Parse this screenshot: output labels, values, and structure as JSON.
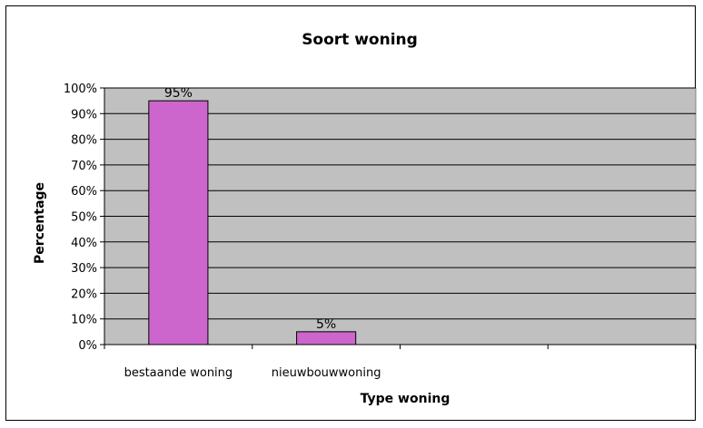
{
  "chart_data": {
    "type": "bar",
    "title": "Soort woning",
    "xlabel": "Type woning",
    "ylabel": "Percentage",
    "categories": [
      "bestaande woning",
      "nieuwbouwwoning",
      "",
      ""
    ],
    "values": [
      95,
      5,
      null,
      null
    ],
    "data_labels": [
      "95%",
      "5%",
      "",
      ""
    ],
    "ylim": [
      0,
      100
    ],
    "y_ticks": [
      "0%",
      "10%",
      "20%",
      "30%",
      "40%",
      "50%",
      "60%",
      "70%",
      "80%",
      "90%",
      "100%"
    ],
    "grid": true,
    "legend": "none",
    "colors": {
      "bar_fill": "#CC66CC",
      "bar_stroke": "#000000",
      "plot_background": "#C0C0C0",
      "gridline": "#000000"
    }
  }
}
